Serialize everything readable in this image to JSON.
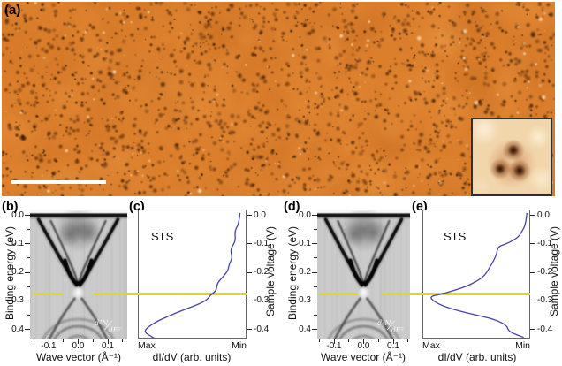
{
  "figure": {
    "panel_labels": {
      "a": "(a)",
      "b": "(b)",
      "c": "(c)",
      "d": "(d)",
      "e": "(e)"
    }
  },
  "colors": {
    "highlight_line": "#e6d41e",
    "sts_curve": "#4343a8",
    "stm_base": "#db7f2c",
    "stm_dark_spot_rgb": "42,16,2",
    "stm_bright_spot_rgb": "250,228,185",
    "band_background": "#cbcbcb",
    "inset_background": "#f2d6ab",
    "inset_border": "#2e2e2e",
    "axis_text": "#111111"
  },
  "stm": {
    "scale_bar": {
      "present": true,
      "label": ""
    },
    "inset": {
      "feature": "triple-lobed dark defect"
    }
  },
  "chart_data": [
    {
      "id": "b",
      "type": "heatmap",
      "content": "ARPES second-derivative band map with Dirac cone",
      "xlabel": "Wave vector (Å⁻¹)",
      "ylabel": "Binding energy (eV)",
      "x_tick_labels": [
        "-0.1",
        "0.0",
        "0.1"
      ],
      "x_tick_values": [
        -0.1,
        0.0,
        0.1
      ],
      "x_minor_tick_values": [
        -0.15,
        -0.05,
        0.05,
        0.15
      ],
      "y_tick_labels": [
        "0.0",
        "0.1",
        "0.2",
        "0.3",
        "0.4"
      ],
      "y_tick_values": [
        0.0,
        0.1,
        0.2,
        0.3,
        0.4
      ],
      "y_minor_tick_values": [
        0.05,
        0.15,
        0.25,
        0.35
      ],
      "xlim": [
        -0.16,
        0.16
      ],
      "ylim": [
        0.44,
        -0.02
      ],
      "dirac_point_eV": 0.27,
      "highlight_line_eV": 0.275,
      "annotation_parts": {
        "num": "d²N",
        "slash": "⁄",
        "den": "dE²"
      }
    },
    {
      "id": "c",
      "type": "line",
      "label": "STS",
      "xlabel": "dI/dV (arb. units)",
      "ylabel": "Sample voltage (V)",
      "x_endpoint_labels": [
        "Max",
        "Min"
      ],
      "y_tick_labels": [
        "0.0",
        "-0.1",
        "-0.2",
        "-0.3",
        "-0.4"
      ],
      "y_tick_values": [
        0.0,
        -0.1,
        -0.2,
        -0.3,
        -0.4
      ],
      "ylim": [
        0.02,
        -0.43
      ],
      "highlight_line_V": -0.275,
      "points_voltage_vs_didv_fraction": [
        [
          0.008,
          0.94
        ],
        [
          -0.03,
          0.93
        ],
        [
          -0.055,
          0.89
        ],
        [
          -0.09,
          0.9
        ],
        [
          -0.12,
          0.85
        ],
        [
          -0.15,
          0.87
        ],
        [
          -0.17,
          0.84
        ],
        [
          -0.195,
          0.83
        ],
        [
          -0.225,
          0.76
        ],
        [
          -0.24,
          0.73
        ],
        [
          -0.265,
          0.72
        ],
        [
          -0.278,
          0.67
        ],
        [
          -0.295,
          0.64
        ],
        [
          -0.31,
          0.57
        ],
        [
          -0.33,
          0.43
        ],
        [
          -0.355,
          0.27
        ],
        [
          -0.375,
          0.16
        ],
        [
          -0.395,
          0.08
        ],
        [
          -0.41,
          0.06
        ],
        [
          -0.43,
          0.15
        ]
      ]
    },
    {
      "id": "d",
      "type": "heatmap",
      "content": "ARPES second-derivative band map with Dirac cone",
      "xlabel": "Wave vector (Å⁻¹)",
      "ylabel": "Binding energy (eV)",
      "x_tick_labels": [
        "-0.1",
        "0.0",
        "0.1"
      ],
      "x_tick_values": [
        -0.1,
        0.0,
        0.1
      ],
      "x_minor_tick_values": [
        -0.15,
        -0.05,
        0.05,
        0.15
      ],
      "y_tick_labels": [
        "0.0",
        "0.1",
        "0.2",
        "0.3",
        "0.4"
      ],
      "y_tick_values": [
        0.0,
        0.1,
        0.2,
        0.3,
        0.4
      ],
      "y_minor_tick_values": [
        0.05,
        0.15,
        0.25,
        0.35
      ],
      "xlim": [
        -0.155,
        0.155
      ],
      "ylim": [
        0.44,
        -0.02
      ],
      "dirac_point_eV": 0.27,
      "highlight_line_eV": 0.275,
      "annotation_parts": {
        "num": "d²N",
        "slash": "⁄",
        "den": "dE²"
      }
    },
    {
      "id": "e",
      "type": "line",
      "label": "STS",
      "xlabel": "dI/dV (arb. units)",
      "ylabel": "Sample voltage (V)",
      "x_endpoint_labels": [
        "Max",
        "Min"
      ],
      "y_tick_labels": [
        "0.0",
        "-0.1",
        "-0.2",
        "-0.3",
        "-0.4"
      ],
      "y_tick_values": [
        0.0,
        -0.1,
        -0.2,
        -0.3,
        -0.4
      ],
      "ylim": [
        0.02,
        -0.43
      ],
      "highlight_line_V": -0.275,
      "points_voltage_vs_didv_fraction": [
        [
          0.008,
          0.97
        ],
        [
          -0.03,
          0.96
        ],
        [
          -0.06,
          0.92
        ],
        [
          -0.08,
          0.88
        ],
        [
          -0.1,
          0.78
        ],
        [
          -0.11,
          0.7
        ],
        [
          -0.135,
          0.69
        ],
        [
          -0.16,
          0.66
        ],
        [
          -0.185,
          0.62
        ],
        [
          -0.21,
          0.58
        ],
        [
          -0.23,
          0.51
        ],
        [
          -0.247,
          0.42
        ],
        [
          -0.263,
          0.3
        ],
        [
          -0.277,
          0.16
        ],
        [
          -0.285,
          0.07
        ],
        [
          -0.3,
          0.1
        ],
        [
          -0.318,
          0.19
        ],
        [
          -0.333,
          0.32
        ],
        [
          -0.348,
          0.48
        ],
        [
          -0.36,
          0.62
        ],
        [
          -0.37,
          0.7
        ],
        [
          -0.385,
          0.78
        ],
        [
          -0.405,
          0.8
        ],
        [
          -0.415,
          0.85
        ],
        [
          -0.428,
          0.94
        ]
      ]
    }
  ]
}
